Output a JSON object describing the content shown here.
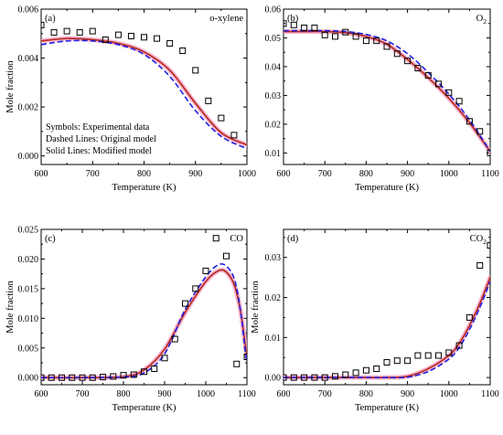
{
  "figure": {
    "notes": [
      "Symbols: Experimental data",
      "Dashed Lines: Original model",
      "Solid Lines: Modified model"
    ]
  },
  "colors": {
    "experimental": "#000000",
    "original_model": "#1f1fe0",
    "modified_model": "#b5271b",
    "modified_band": "#f4a6c6",
    "axes": "#000000",
    "background": "#ffffff"
  },
  "chart_data": [
    {
      "id": "a",
      "type": "line",
      "panel_tag": "(a)",
      "species_label": "o-xylene",
      "xlabel": "Temperature (K)",
      "ylabel": "Mole fraction",
      "xlim": [
        600,
        1000
      ],
      "ylim": [
        -0.00035,
        0.006
      ],
      "xticks": [
        "600",
        "700",
        "800",
        "900",
        "1000"
      ],
      "yticks": [
        "0.000",
        "0.002",
        "0.004",
        "0.006"
      ],
      "grid": false,
      "notes": [
        "Symbols: Experimental data",
        "Dashed Lines: Original model",
        "Solid Lines: Modified model"
      ],
      "series": [
        {
          "kind": "experimental",
          "x": [
            600,
            625,
            650,
            675,
            700,
            725,
            750,
            775,
            800,
            825,
            850,
            875,
            900,
            925,
            950,
            975
          ],
          "y": [
            0.00535,
            0.00505,
            0.0051,
            0.00505,
            0.0051,
            0.00475,
            0.00495,
            0.0049,
            0.00485,
            0.0048,
            0.0046,
            0.0043,
            0.0035,
            0.00225,
            0.00155,
            0.00085
          ]
        },
        {
          "kind": "original_model",
          "x": [
            600,
            650,
            700,
            750,
            800,
            850,
            900,
            950,
            1000
          ],
          "y": [
            0.00455,
            0.0047,
            0.0047,
            0.00455,
            0.00415,
            0.00325,
            0.00185,
            0.0008,
            0.0003
          ]
        },
        {
          "kind": "modified_model",
          "x": [
            600,
            650,
            700,
            750,
            800,
            850,
            900,
            950,
            1000
          ],
          "y": [
            0.0047,
            0.0048,
            0.00475,
            0.0046,
            0.00425,
            0.0035,
            0.00215,
            0.00095,
            0.00045
          ]
        }
      ]
    },
    {
      "id": "b",
      "type": "line",
      "panel_tag": "(b)",
      "species_label": "O",
      "species_subscript": "2",
      "xlabel": "Temperature (K)",
      "ylabel": "",
      "xlim": [
        600,
        1100
      ],
      "ylim": [
        0.006,
        0.06
      ],
      "xticks": [
        "600",
        "700",
        "800",
        "900",
        "1000",
        "1100"
      ],
      "yticks": [
        "0.01",
        "0.02",
        "0.03",
        "0.04",
        "0.05",
        "0.06"
      ],
      "grid": false,
      "series": [
        {
          "kind": "experimental",
          "x": [
            600,
            625,
            650,
            675,
            700,
            725,
            750,
            775,
            800,
            825,
            850,
            875,
            900,
            925,
            950,
            975,
            1000,
            1025,
            1050,
            1075,
            1100
          ],
          "y": [
            0.055,
            0.0545,
            0.0535,
            0.0535,
            0.051,
            0.0505,
            0.052,
            0.0505,
            0.049,
            0.049,
            0.047,
            0.0445,
            0.042,
            0.0395,
            0.037,
            0.034,
            0.031,
            0.028,
            0.021,
            0.0175,
            0.01
          ]
        },
        {
          "kind": "original_model",
          "x": [
            600,
            650,
            700,
            750,
            800,
            850,
            900,
            950,
            1000,
            1050,
            1100
          ],
          "y": [
            0.0525,
            0.0525,
            0.0525,
            0.0522,
            0.0512,
            0.049,
            0.0445,
            0.038,
            0.0305,
            0.0215,
            0.0105
          ]
        },
        {
          "kind": "modified_model",
          "x": [
            600,
            650,
            700,
            750,
            800,
            850,
            900,
            950,
            1000,
            1050,
            1100
          ],
          "y": [
            0.0522,
            0.0522,
            0.0522,
            0.0518,
            0.0505,
            0.0478,
            0.0425,
            0.0362,
            0.029,
            0.0205,
            0.0105
          ]
        }
      ]
    },
    {
      "id": "c",
      "type": "line",
      "panel_tag": "(c)",
      "species_label": "CO",
      "xlabel": "Temperature (K)",
      "ylabel": "Mole fraction",
      "xlim": [
        600,
        1100
      ],
      "ylim": [
        -0.0012,
        0.025
      ],
      "xticks": [
        "600",
        "700",
        "800",
        "900",
        "1000",
        "1100"
      ],
      "yticks": [
        "0.000",
        "0.005",
        "0.010",
        "0.015",
        "0.020",
        "0.025"
      ],
      "grid": false,
      "series": [
        {
          "kind": "experimental",
          "x": [
            600,
            625,
            650,
            675,
            700,
            725,
            750,
            775,
            800,
            825,
            850,
            875,
            900,
            925,
            950,
            975,
            1000,
            1025,
            1050,
            1075,
            1100
          ],
          "y": [
            0.0,
            0.0,
            0.0,
            0.0,
            0.0,
            0.0,
            0.0001,
            0.0002,
            0.0004,
            0.0005,
            0.001,
            0.0015,
            0.0033,
            0.0065,
            0.0125,
            0.015,
            0.018,
            0.0235,
            0.0205,
            0.0023,
            0.0035
          ]
        },
        {
          "kind": "original_model",
          "x": [
            600,
            700,
            800,
            850,
            900,
            950,
            1000,
            1030,
            1050,
            1070,
            1085,
            1095,
            1100
          ],
          "y": [
            0.0,
            0.0,
            0.0001,
            0.0008,
            0.004,
            0.0115,
            0.017,
            0.019,
            0.0188,
            0.0165,
            0.011,
            0.005,
            0.0025
          ]
        },
        {
          "kind": "modified_model",
          "x": [
            600,
            700,
            800,
            850,
            900,
            950,
            1000,
            1030,
            1050,
            1070,
            1085,
            1095,
            1100
          ],
          "y": [
            0.0,
            0.0,
            0.00015,
            0.0013,
            0.0048,
            0.011,
            0.0162,
            0.018,
            0.0178,
            0.0155,
            0.011,
            0.006,
            0.0035
          ]
        }
      ]
    },
    {
      "id": "d",
      "type": "line",
      "panel_tag": "(d)",
      "species_label": "CO",
      "species_subscript": "2",
      "xlabel": "Temperature (K)",
      "ylabel": "Mole fraction",
      "xlim": [
        600,
        1100
      ],
      "ylim": [
        -0.0018,
        0.037
      ],
      "xticks": [
        "600",
        "700",
        "800",
        "900",
        "1000",
        "1100"
      ],
      "yticks": [
        "0.00",
        "0.01",
        "0.02",
        "0.03"
      ],
      "grid": false,
      "series": [
        {
          "kind": "experimental",
          "x": [
            600,
            625,
            650,
            675,
            700,
            725,
            750,
            775,
            800,
            825,
            850,
            875,
            900,
            925,
            950,
            975,
            1000,
            1025,
            1050,
            1075,
            1100
          ],
          "y": [
            0.0,
            0.0,
            0.0,
            0.0,
            0.0,
            0.0003,
            0.0007,
            0.0012,
            0.0018,
            0.0022,
            0.0038,
            0.0042,
            0.0042,
            0.0055,
            0.0055,
            0.0055,
            0.0062,
            0.008,
            0.015,
            0.028,
            0.033
          ]
        },
        {
          "kind": "original_model",
          "x": [
            600,
            700,
            800,
            850,
            900,
            950,
            1000,
            1025,
            1050,
            1075,
            1100
          ],
          "y": [
            0.0,
            0.0,
            0.0,
            0.0,
            0.0001,
            0.0015,
            0.0046,
            0.0075,
            0.012,
            0.0175,
            0.024
          ]
        },
        {
          "kind": "modified_model",
          "x": [
            600,
            700,
            800,
            850,
            900,
            950,
            1000,
            1025,
            1050,
            1075,
            1100
          ],
          "y": [
            0.0,
            0.0,
            0.0,
            0.0,
            0.0003,
            0.0022,
            0.0055,
            0.0085,
            0.013,
            0.0185,
            0.025
          ]
        }
      ]
    }
  ]
}
